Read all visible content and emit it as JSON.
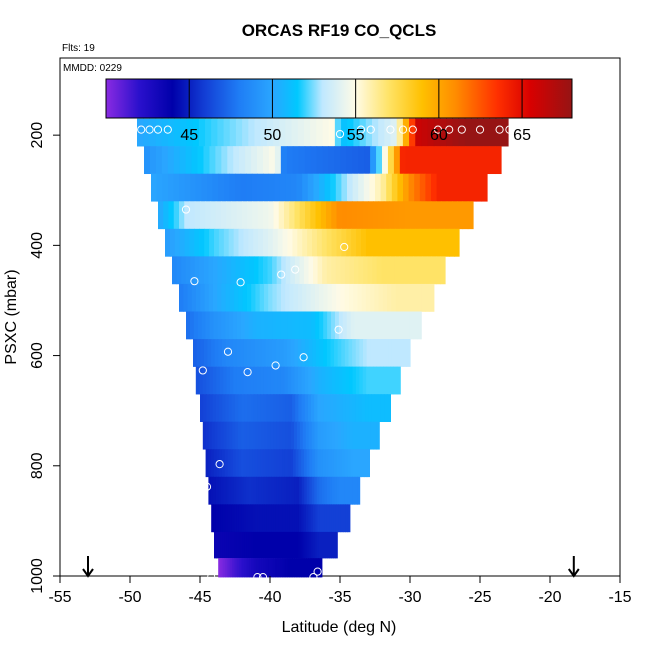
{
  "chart_data": {
    "type": "heatmap",
    "title": "ORCAS RF19 CO_QCLS",
    "flights_label": "Flts: 19",
    "mmdd_label": "MMDD: 0229",
    "xlabel": "Latitude (deg N)",
    "ylabel": "PSXC (mbar)",
    "xlim": [
      -55,
      -15
    ],
    "ylim": [
      1000,
      60
    ],
    "y_reversed": true,
    "xticks": [
      -55,
      -50,
      -45,
      -40,
      -35,
      -30,
      -25,
      -20,
      -15
    ],
    "yticks": [
      200,
      400,
      600,
      800,
      1000
    ],
    "colorbar": {
      "range": [
        40,
        68
      ],
      "ticks": [
        45,
        50,
        55,
        60,
        65
      ],
      "stops": [
        {
          "value": 40.0,
          "color": "#8a2be2"
        },
        {
          "value": 42.0,
          "color": "#2a10cc"
        },
        {
          "value": 44.0,
          "color": "#0000aa"
        },
        {
          "value": 46.0,
          "color": "#1340d6"
        },
        {
          "value": 48.0,
          "color": "#1f7df5"
        },
        {
          "value": 50.0,
          "color": "#2aa6ff"
        },
        {
          "value": 51.5,
          "color": "#00c8ff"
        },
        {
          "value": 53.0,
          "color": "#bfe8ff"
        },
        {
          "value": 55.0,
          "color": "#fffbe6"
        },
        {
          "value": 57.0,
          "color": "#ffe366"
        },
        {
          "value": 59.0,
          "color": "#ffc000"
        },
        {
          "value": 61.0,
          "color": "#ff8c00"
        },
        {
          "value": 63.5,
          "color": "#ff3000"
        },
        {
          "value": 65.5,
          "color": "#d80000"
        },
        {
          "value": 68.0,
          "color": "#961414"
        }
      ]
    },
    "bands": [
      {
        "p": 195,
        "lat_min": -49.5,
        "lat_max": -23,
        "segs": [
          [
            -49.5,
            50
          ],
          [
            -35.5,
            55
          ],
          [
            -35,
            51
          ],
          [
            -31,
            54
          ],
          [
            -29.5,
            66
          ],
          [
            -26,
            68
          ]
        ]
      },
      {
        "p": 245,
        "lat_min": -49,
        "lat_max": -23.5,
        "segs": [
          [
            -49,
            49
          ],
          [
            -39.5,
            55
          ],
          [
            -39,
            48
          ],
          [
            -33,
            47
          ],
          [
            -31,
            60
          ],
          [
            -30.5,
            64
          ]
        ]
      },
      {
        "p": 295,
        "lat_min": -48.5,
        "lat_max": -24.5,
        "segs": [
          [
            -48.5,
            50
          ],
          [
            -42,
            48
          ],
          [
            -38,
            48.5
          ],
          [
            -32,
            56
          ],
          [
            -30,
            61
          ],
          [
            -28,
            64
          ]
        ]
      },
      {
        "p": 345,
        "lat_min": -48,
        "lat_max": -25.5,
        "segs": [
          [
            -48,
            50
          ],
          [
            -46,
            53
          ],
          [
            -40,
            54.5
          ],
          [
            -35,
            61
          ],
          [
            -30,
            60.5
          ]
        ]
      },
      {
        "p": 395,
        "lat_min": -47.5,
        "lat_max": -26.5,
        "segs": [
          [
            -47.5,
            49.5
          ],
          [
            -44,
            52
          ],
          [
            -40,
            54
          ],
          [
            -36,
            57
          ],
          [
            -33,
            59
          ]
        ]
      },
      {
        "p": 445,
        "lat_min": -47,
        "lat_max": -27.5,
        "segs": [
          [
            -47,
            48.5
          ],
          [
            -44,
            50
          ],
          [
            -40,
            52
          ],
          [
            -36,
            56
          ],
          [
            -32,
            57
          ]
        ]
      },
      {
        "p": 495,
        "lat_min": -46.5,
        "lat_max": -28.3,
        "segs": [
          [
            -46.5,
            48
          ],
          [
            -44,
            50
          ],
          [
            -40,
            52.5
          ],
          [
            -35,
            55
          ],
          [
            -31,
            56
          ]
        ]
      },
      {
        "p": 545,
        "lat_min": -46,
        "lat_max": -29.2,
        "segs": [
          [
            -46,
            47.5
          ],
          [
            -44,
            49
          ],
          [
            -41,
            50.5
          ],
          [
            -37,
            51
          ],
          [
            -34,
            54
          ]
        ]
      },
      {
        "p": 595,
        "lat_min": -45.5,
        "lat_max": -30,
        "segs": [
          [
            -45.5,
            47
          ],
          [
            -43,
            48.5
          ],
          [
            -39,
            49.5
          ],
          [
            -36,
            51.5
          ],
          [
            -33,
            53
          ]
        ]
      },
      {
        "p": 645,
        "lat_min": -45.3,
        "lat_max": -30.7,
        "segs": [
          [
            -45.3,
            46.5
          ],
          [
            -42.5,
            48
          ],
          [
            -39,
            48.5
          ],
          [
            -36.5,
            50.5
          ],
          [
            -33,
            52
          ]
        ]
      },
      {
        "p": 695,
        "lat_min": -45,
        "lat_max": -31.4,
        "segs": [
          [
            -45,
            46
          ],
          [
            -42,
            47.5
          ],
          [
            -38.5,
            47
          ],
          [
            -36.5,
            50
          ],
          [
            -33,
            51
          ]
        ]
      },
      {
        "p": 745,
        "lat_min": -44.8,
        "lat_max": -32.2,
        "segs": [
          [
            -44.8,
            45.5
          ],
          [
            -42,
            47
          ],
          [
            -38.5,
            46.5
          ],
          [
            -36.5,
            49.5
          ],
          [
            -34,
            50.5
          ]
        ]
      },
      {
        "p": 795,
        "lat_min": -44.6,
        "lat_max": -32.9,
        "segs": [
          [
            -44.6,
            45
          ],
          [
            -42,
            46.5
          ],
          [
            -38.5,
            46
          ],
          [
            -36.5,
            49
          ],
          [
            -34,
            50
          ]
        ]
      },
      {
        "p": 845,
        "lat_min": -44.4,
        "lat_max": -33.6,
        "segs": [
          [
            -44.4,
            44.5
          ],
          [
            -41.5,
            45.5
          ],
          [
            -38,
            45
          ],
          [
            -36.5,
            47.5
          ],
          [
            -35,
            48.5
          ]
        ]
      },
      {
        "p": 895,
        "lat_min": -44.2,
        "lat_max": -34.3,
        "segs": [
          [
            -44.2,
            44
          ],
          [
            -41,
            44.5
          ],
          [
            -38,
            44.5
          ],
          [
            -36.5,
            46
          ]
        ]
      },
      {
        "p": 945,
        "lat_min": -44,
        "lat_max": -35.2,
        "segs": [
          [
            -44,
            43.5
          ],
          [
            -41,
            44
          ],
          [
            -38,
            44
          ],
          [
            -36.5,
            45
          ]
        ]
      },
      {
        "p": 990,
        "lat_min": -43.7,
        "lat_max": -36.3,
        "segs": [
          [
            -43.7,
            40
          ],
          [
            -42.5,
            41.5
          ],
          [
            -41,
            43
          ],
          [
            -38.5,
            44
          ]
        ]
      }
    ],
    "points": [
      [
        -49.8,
        190
      ],
      [
        -49.2,
        190
      ],
      [
        -48.6,
        190
      ],
      [
        -48.0,
        190
      ],
      [
        -47.3,
        190
      ],
      [
        -35.0,
        198
      ],
      [
        -33.5,
        190
      ],
      [
        -32.8,
        190
      ],
      [
        -31.4,
        190
      ],
      [
        -30.5,
        190
      ],
      [
        -29.8,
        190
      ],
      [
        -28.0,
        190
      ],
      [
        -27.2,
        190
      ],
      [
        -26.3,
        190
      ],
      [
        -25.0,
        190
      ],
      [
        -23.6,
        190
      ],
      [
        -22.9,
        190
      ],
      [
        -46.0,
        335
      ],
      [
        -34.7,
        403
      ],
      [
        -45.4,
        465
      ],
      [
        -42.1,
        467
      ],
      [
        -39.2,
        453
      ],
      [
        -38.2,
        444
      ],
      [
        -35.1,
        553
      ],
      [
        -43.0,
        593
      ],
      [
        -44.8,
        627
      ],
      [
        -41.6,
        630
      ],
      [
        -39.6,
        618
      ],
      [
        -37.6,
        603
      ],
      [
        -43.6,
        797
      ],
      [
        -44.5,
        838
      ],
      [
        -44.2,
        1002
      ],
      [
        -40.9,
        1002
      ],
      [
        -40.5,
        1002
      ],
      [
        -36.9,
        1002
      ],
      [
        -36.6,
        992
      ]
    ],
    "arrows_lat": [
      -53.0,
      -18.3
    ]
  }
}
